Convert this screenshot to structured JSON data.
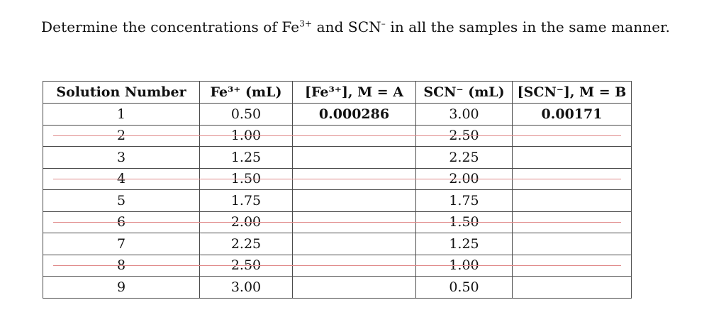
{
  "instructions": {
    "before_fe": "Determine the concentrations of Fe",
    "fe_charge": "3+",
    "middle": " and SCN",
    "scn_charge": "–",
    "after": " in all the samples in the same manner."
  },
  "table": {
    "headers": [
      "Solution Number",
      "Fe³⁺ (mL)",
      "[Fe³⁺], M = A",
      "SCN⁻ (mL)",
      "[SCN⁻], M = B"
    ],
    "rows": [
      {
        "number": "1",
        "fe_ml": "0.50",
        "fe_conc": "0.000286",
        "scn_ml": "3.00",
        "scn_conc": "0.00171",
        "struck": false
      },
      {
        "number": "2",
        "fe_ml": "1.00",
        "fe_conc": "",
        "scn_ml": "2.50",
        "scn_conc": "",
        "struck": true
      },
      {
        "number": "3",
        "fe_ml": "1.25",
        "fe_conc": "",
        "scn_ml": "2.25",
        "scn_conc": "",
        "struck": false
      },
      {
        "number": "4",
        "fe_ml": "1.50",
        "fe_conc": "",
        "scn_ml": "2.00",
        "scn_conc": "",
        "struck": true
      },
      {
        "number": "5",
        "fe_ml": "1.75",
        "fe_conc": "",
        "scn_ml": "1.75",
        "scn_conc": "",
        "struck": false
      },
      {
        "number": "6",
        "fe_ml": "2.00",
        "fe_conc": "",
        "scn_ml": "1.50",
        "scn_conc": "",
        "struck": true
      },
      {
        "number": "7",
        "fe_ml": "2.25",
        "fe_conc": "",
        "scn_ml": "1.25",
        "scn_conc": "",
        "struck": false
      },
      {
        "number": "8",
        "fe_ml": "2.50",
        "fe_conc": "",
        "scn_ml": "1.00",
        "scn_conc": "",
        "struck": true
      },
      {
        "number": "9",
        "fe_ml": "3.00",
        "fe_conc": "",
        "scn_ml": "0.50",
        "scn_conc": "",
        "struck": false
      }
    ],
    "strike_color": "#e08a8a"
  }
}
